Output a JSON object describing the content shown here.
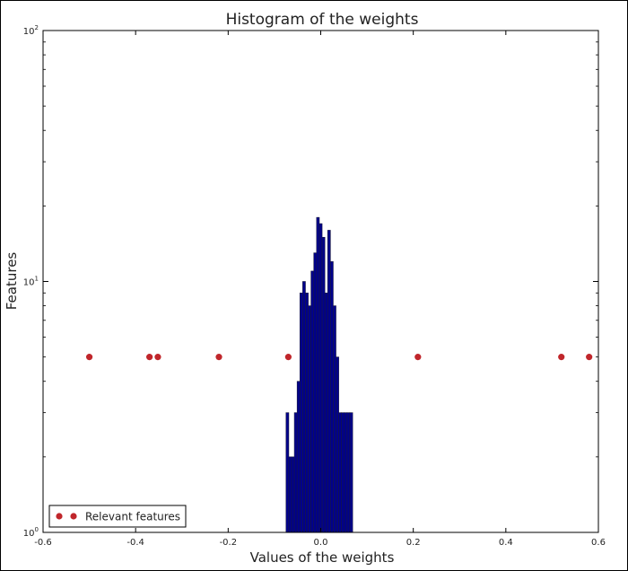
{
  "chart_data": {
    "type": "bar",
    "title": "Histogram of the weights",
    "xlabel": "Values of the weights",
    "ylabel": "Features",
    "xlim": [
      -0.6,
      0.6
    ],
    "ylim": [
      1,
      100
    ],
    "yscale": "log",
    "xticks": [
      "-0.6",
      "-0.4",
      "-0.2",
      "0.0",
      "0.2",
      "0.4",
      "0.6"
    ],
    "xtick_values": [
      -0.6,
      -0.4,
      -0.2,
      0.0,
      0.2,
      0.4,
      0.6
    ],
    "yticks": [
      {
        "value": 1,
        "base": "10",
        "exp": "0"
      },
      {
        "value": 10,
        "base": "10",
        "exp": "1"
      },
      {
        "value": 100,
        "base": "10",
        "exp": "2"
      }
    ],
    "grid": false,
    "legend_position": "lower-left",
    "histogram": {
      "name": "",
      "color": "#00008b",
      "edgecolor": "#1a1a40",
      "bins": [
        {
          "x0": -0.075,
          "x1": -0.069,
          "count": 3
        },
        {
          "x0": -0.069,
          "x1": -0.063,
          "count": 2
        },
        {
          "x0": -0.063,
          "x1": -0.057,
          "count": 2
        },
        {
          "x0": -0.057,
          "x1": -0.051,
          "count": 3
        },
        {
          "x0": -0.051,
          "x1": -0.045,
          "count": 4
        },
        {
          "x0": -0.045,
          "x1": -0.039,
          "count": 9
        },
        {
          "x0": -0.039,
          "x1": -0.033,
          "count": 10
        },
        {
          "x0": -0.033,
          "x1": -0.027,
          "count": 9
        },
        {
          "x0": -0.027,
          "x1": -0.021,
          "count": 8
        },
        {
          "x0": -0.021,
          "x1": -0.015,
          "count": 11
        },
        {
          "x0": -0.015,
          "x1": -0.009,
          "count": 13
        },
        {
          "x0": -0.009,
          "x1": -0.003,
          "count": 18
        },
        {
          "x0": -0.003,
          "x1": 0.003,
          "count": 17
        },
        {
          "x0": 0.003,
          "x1": 0.009,
          "count": 15
        },
        {
          "x0": 0.009,
          "x1": 0.015,
          "count": 9
        },
        {
          "x0": 0.015,
          "x1": 0.021,
          "count": 16
        },
        {
          "x0": 0.021,
          "x1": 0.027,
          "count": 12
        },
        {
          "x0": 0.027,
          "x1": 0.033,
          "count": 8
        },
        {
          "x0": 0.033,
          "x1": 0.039,
          "count": 5
        },
        {
          "x0": 0.039,
          "x1": 0.045,
          "count": 3
        },
        {
          "x0": 0.045,
          "x1": 0.051,
          "count": 3
        },
        {
          "x0": 0.051,
          "x1": 0.057,
          "count": 3
        },
        {
          "x0": 0.057,
          "x1": 0.063,
          "count": 3
        },
        {
          "x0": 0.063,
          "x1": 0.069,
          "count": 3
        }
      ]
    },
    "series": [
      {
        "name": "Relevant features",
        "kind": "scatter",
        "color": "#c0262b",
        "points": [
          {
            "x": -0.5,
            "y": 5
          },
          {
            "x": -0.37,
            "y": 5
          },
          {
            "x": -0.352,
            "y": 5
          },
          {
            "x": -0.22,
            "y": 5
          },
          {
            "x": -0.07,
            "y": 5
          },
          {
            "x": 0.21,
            "y": 5
          },
          {
            "x": 0.52,
            "y": 5
          },
          {
            "x": 0.58,
            "y": 5
          }
        ]
      }
    ]
  }
}
